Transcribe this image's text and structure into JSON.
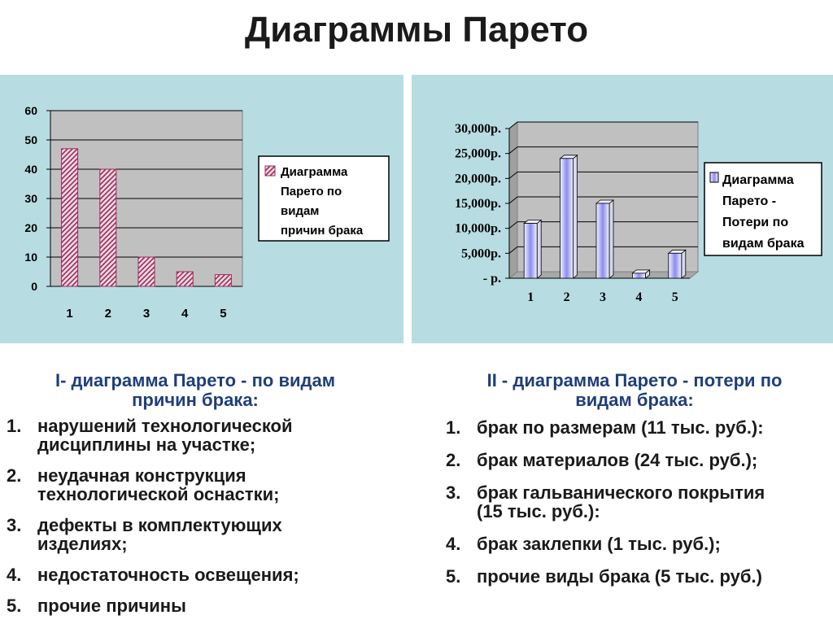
{
  "page_title": "Диаграммы Парето",
  "chart_data": [
    {
      "type": "bar",
      "categories": [
        "1",
        "2",
        "3",
        "4",
        "5"
      ],
      "values": [
        47,
        40,
        10,
        5,
        4
      ],
      "ylim": [
        0,
        60
      ],
      "yticks": [
        "0",
        "10",
        "20",
        "30",
        "40",
        "50",
        "60"
      ],
      "legend": [
        "Диаграмма",
        "Парето по",
        "видам",
        "причин брака"
      ],
      "legend_placement": "right",
      "grid": true,
      "colors": {
        "bar_fill": "#f1d9e2",
        "bar_hatch": "#9c2a59",
        "plot_bg": "#c0c0c0"
      }
    },
    {
      "type": "bar",
      "categories": [
        "1",
        "2",
        "3",
        "4",
        "5"
      ],
      "values": [
        11000,
        24000,
        15000,
        1000,
        5000
      ],
      "ylim": [
        0,
        30000
      ],
      "yticks": [
        "-    р.",
        "5,000р.",
        "10,000р.",
        "15,000р.",
        "20,000р.",
        "25,000р.",
        "30,000р."
      ],
      "legend": [
        "Диаграмма",
        "Парето -",
        "Потери по",
        "видам брака"
      ],
      "legend_placement": "right",
      "grid": true,
      "style": "3d-column",
      "colors": {
        "bar_fill": "#f4f4ff",
        "bar_glow": "#8c8cf0",
        "plot_bg": "#c0c0c0"
      }
    }
  ],
  "section1": {
    "heading_line1": "I- диаграмма Парето - по видам",
    "heading_line2": "причин брака:",
    "items": [
      {
        "num": "1.",
        "lines": [
          "нарушений технологической",
          "дисциплины на участке;"
        ]
      },
      {
        "num": "2.",
        "lines": [
          "неудачная конструкция",
          "технологической оснастки;"
        ]
      },
      {
        "num": "3.",
        "lines": [
          "дефекты в комплектующих",
          "изделиях;"
        ]
      },
      {
        "num": "4.",
        "lines": [
          "недостаточность освещения;"
        ]
      },
      {
        "num": "5.",
        "lines": [
          "прочие причины"
        ]
      }
    ]
  },
  "section2": {
    "heading_line1": "II - диаграмма Парето - потери по",
    "heading_line2": "видам брака:",
    "items": [
      {
        "num": "1.",
        "lines": [
          "брак по размерам (11 тыс. руб.):"
        ]
      },
      {
        "num": "2.",
        "lines": [
          "брак материалов (24 тыс. руб.);"
        ]
      },
      {
        "num": "3.",
        "lines": [
          "брак гальванического покрытия",
          "(15 тыс. руб.):"
        ]
      },
      {
        "num": "4.",
        "lines": [
          "брак заклепки (1 тыс. руб.);"
        ]
      },
      {
        "num": "5.",
        "lines": [
          "прочие виды брака (5 тыс. руб.)"
        ]
      }
    ]
  }
}
